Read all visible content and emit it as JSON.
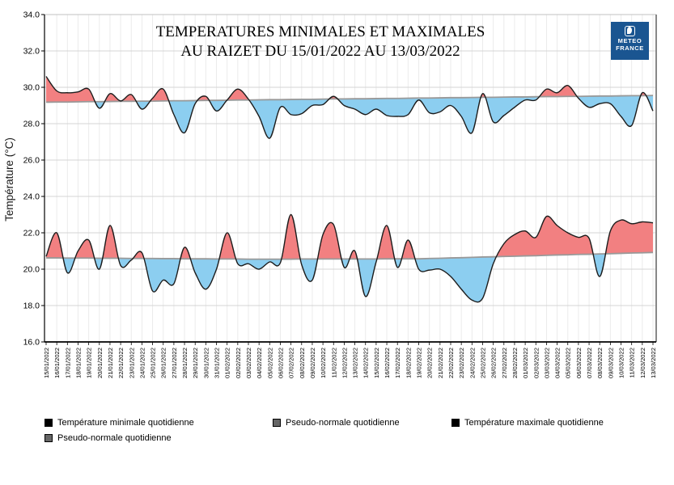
{
  "title": {
    "line1": "TEMPERATURES MINIMALES ET MAXIMALES",
    "line2": "AU RAIZET DU 15/01/2022 AU 13/03/2022"
  },
  "logo": {
    "line1": "METEO",
    "line2": "FRANCE",
    "bg_color": "#1a5591"
  },
  "legend": {
    "items": [
      {
        "label": "Température minimale quotidienne",
        "color": "#000000"
      },
      {
        "label": "Pseudo-normale quotidienne",
        "color": "#666666"
      },
      {
        "label": "Température maximale quotidienne",
        "color": "#000000"
      },
      {
        "label": "Pseudo-normale quotidienne",
        "color": "#666666"
      }
    ]
  },
  "chart_data": {
    "type": "area",
    "title": "TEMPERATURES MINIMALES ET MAXIMALES AU RAIZET DU 15/01/2022 AU 13/03/2022",
    "ylabel": "Température (°C)",
    "ylim": [
      16,
      34
    ],
    "ytick_step": 2,
    "grid": true,
    "colors": {
      "above_normal": "#F28081",
      "below_normal": "#8CCEF0",
      "temp_line": "#1c1c1c",
      "normal_line": "#999999"
    },
    "x": [
      "15/01/2022",
      "16/01/2022",
      "17/01/2022",
      "18/01/2022",
      "19/01/2022",
      "20/01/2022",
      "21/01/2022",
      "22/01/2022",
      "23/01/2022",
      "24/01/2022",
      "25/01/2022",
      "26/01/2022",
      "27/01/2022",
      "28/01/2022",
      "29/01/2022",
      "30/01/2022",
      "31/01/2022",
      "01/02/2022",
      "02/02/2022",
      "03/02/2022",
      "04/02/2022",
      "05/02/2022",
      "06/02/2022",
      "07/02/2022",
      "08/02/2022",
      "09/02/2022",
      "10/02/2022",
      "11/02/2022",
      "12/02/2022",
      "13/02/2022",
      "14/02/2022",
      "15/02/2022",
      "16/02/2022",
      "17/02/2022",
      "18/02/2022",
      "19/02/2022",
      "20/02/2022",
      "21/02/2022",
      "22/02/2022",
      "23/02/2022",
      "24/02/2022",
      "25/02/2022",
      "26/02/2022",
      "27/02/2022",
      "28/02/2022",
      "01/03/2022",
      "02/03/2022",
      "03/03/2022",
      "04/03/2022",
      "05/03/2022",
      "06/03/2022",
      "07/03/2022",
      "08/03/2022",
      "09/03/2022",
      "10/03/2022",
      "11/03/2022",
      "12/03/2022",
      "13/03/2022"
    ],
    "series": [
      {
        "name": "Température maximale quotidienne",
        "values": [
          30.6,
          29.8,
          29.7,
          29.75,
          29.9,
          28.85,
          29.65,
          29.25,
          29.6,
          28.8,
          29.4,
          29.9,
          28.5,
          27.5,
          29.1,
          29.5,
          28.7,
          29.3,
          29.9,
          29.35,
          28.4,
          27.2,
          28.9,
          28.5,
          28.55,
          29.0,
          29.05,
          29.5,
          29.0,
          28.8,
          28.5,
          28.8,
          28.45,
          28.4,
          28.5,
          29.3,
          28.6,
          28.65,
          29.0,
          28.4,
          27.5,
          29.65,
          28.1,
          28.45,
          28.9,
          29.3,
          29.3,
          29.9,
          29.7,
          30.1,
          29.4,
          28.9,
          29.1,
          29.1,
          28.4,
          27.9,
          29.7,
          28.7
        ]
      },
      {
        "name": "Pseudo-normale quotidienne (maximale)",
        "values": [
          29.18,
          29.19,
          29.19,
          29.2,
          29.21,
          29.21,
          29.22,
          29.23,
          29.23,
          29.24,
          29.24,
          29.25,
          29.26,
          29.26,
          29.27,
          29.28,
          29.28,
          29.29,
          29.3,
          29.3,
          29.31,
          29.32,
          29.32,
          29.33,
          29.34,
          29.34,
          29.35,
          29.36,
          29.36,
          29.37,
          29.37,
          29.38,
          29.39,
          29.39,
          29.4,
          29.41,
          29.41,
          29.42,
          29.43,
          29.43,
          29.44,
          29.45,
          29.45,
          29.46,
          29.47,
          29.47,
          29.48,
          29.49,
          29.49,
          29.5,
          29.5,
          29.51,
          29.52,
          29.52,
          29.53,
          29.54,
          29.54,
          29.55
        ]
      },
      {
        "name": "Température minimale quotidienne",
        "values": [
          20.7,
          22.0,
          19.8,
          21.0,
          21.6,
          20.0,
          22.4,
          20.2,
          20.5,
          20.9,
          18.8,
          19.4,
          19.2,
          21.2,
          19.8,
          18.9,
          20.0,
          22.0,
          20.3,
          20.3,
          20.0,
          20.4,
          20.35,
          23.0,
          20.25,
          19.4,
          21.9,
          22.45,
          20.1,
          21.0,
          18.5,
          20.4,
          22.4,
          20.1,
          21.6,
          20.0,
          19.95,
          20.0,
          19.6,
          18.9,
          18.3,
          18.4,
          20.3,
          21.4,
          21.9,
          22.1,
          21.75,
          22.9,
          22.4,
          22.0,
          21.75,
          21.7,
          19.6,
          22.1,
          22.7,
          22.5,
          22.6,
          22.55
        ]
      },
      {
        "name": "Pseudo-normale quotidienne (minimale)",
        "values": [
          20.62,
          20.62,
          20.61,
          20.61,
          20.61,
          20.6,
          20.6,
          20.6,
          20.59,
          20.59,
          20.59,
          20.58,
          20.58,
          20.57,
          20.57,
          20.57,
          20.56,
          20.56,
          20.56,
          20.55,
          20.55,
          20.55,
          20.55,
          20.55,
          20.56,
          20.56,
          20.56,
          20.56,
          20.56,
          20.56,
          20.56,
          20.56,
          20.57,
          20.57,
          20.57,
          20.57,
          20.59,
          20.6,
          20.62,
          20.63,
          20.65,
          20.67,
          20.68,
          20.7,
          20.71,
          20.73,
          20.74,
          20.76,
          20.78,
          20.79,
          20.81,
          20.82,
          20.84,
          20.85,
          20.87,
          20.89,
          20.9,
          20.92
        ]
      }
    ]
  }
}
